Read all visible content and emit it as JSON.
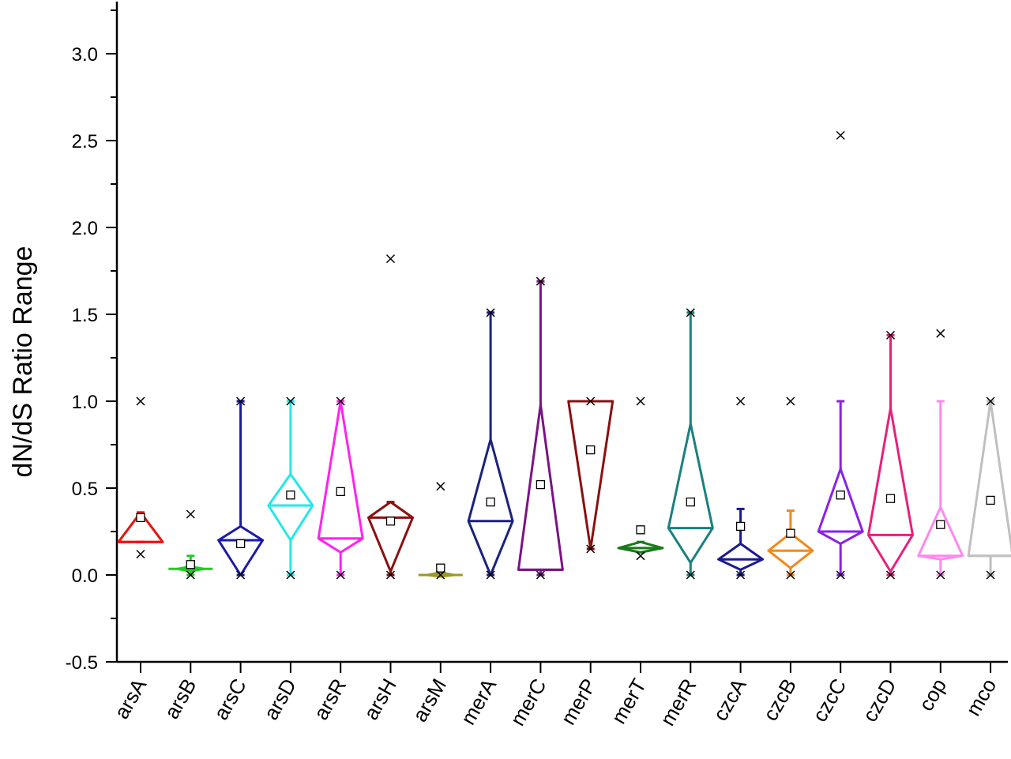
{
  "chart_data": {
    "type": "diamond-box",
    "ylabel": "dN/dS Ratio Range",
    "xlabel": "",
    "ylim": [
      -0.5,
      3.3
    ],
    "yticks": [
      -0.5,
      0.0,
      0.5,
      1.0,
      1.5,
      2.0,
      2.5,
      3.0
    ],
    "ytick_labels": [
      "-0.5",
      "0.0",
      "0.5",
      "1.0",
      "1.5",
      "2.0",
      "2.5",
      "3.0"
    ],
    "grid": false,
    "legend": "none",
    "categories": [
      "arsA",
      "arsB",
      "arsC",
      "arsD",
      "arsR",
      "arsH",
      "arsM",
      "merA",
      "merC",
      "merP",
      "merT",
      "merR",
      "czcA",
      "czcB",
      "czcC",
      "czcD",
      "cop",
      "mco"
    ],
    "series": [
      {
        "category": "arsA",
        "color": "#e8130f",
        "whisker_low": 0.19,
        "whisker_high": 0.36,
        "q1": 0.19,
        "q3": 0.36,
        "median": 0.19,
        "mean": 0.33,
        "min": 0.12,
        "max": 1.0
      },
      {
        "category": "arsB",
        "color": "#22cc22",
        "whisker_low": 0.0,
        "whisker_high": 0.11,
        "q1": 0.03,
        "q3": 0.04,
        "median": 0.035,
        "mean": 0.06,
        "min": 0.0,
        "max": 0.35
      },
      {
        "category": "arsC",
        "color": "#1a1aa8",
        "whisker_low": 0.0,
        "whisker_high": 1.0,
        "q1": 0.0,
        "q3": 0.28,
        "median": 0.2,
        "mean": 0.18,
        "min": 0.0,
        "max": 1.0
      },
      {
        "category": "arsD",
        "color": "#22e8e8",
        "whisker_low": 0.0,
        "whisker_high": 1.0,
        "q1": 0.2,
        "q3": 0.58,
        "median": 0.4,
        "mean": 0.46,
        "min": 0.0,
        "max": 1.0
      },
      {
        "category": "arsR",
        "color": "#ff22ee",
        "whisker_low": 0.0,
        "whisker_high": 1.0,
        "q1": 0.13,
        "q3": 1.0,
        "median": 0.21,
        "mean": 0.48,
        "min": 0.0,
        "max": 1.0
      },
      {
        "category": "arsH",
        "color": "#8b1010",
        "whisker_low": 0.0,
        "whisker_high": 0.42,
        "q1": 0.02,
        "q3": 0.42,
        "median": 0.33,
        "mean": 0.31,
        "min": 0.0,
        "max": 1.82
      },
      {
        "category": "arsM",
        "color": "#9a9a20",
        "whisker_low": 0.0,
        "whisker_high": 0.01,
        "q1": 0.0,
        "q3": 0.005,
        "median": 0.0,
        "mean": 0.04,
        "min": 0.0,
        "max": 0.51
      },
      {
        "category": "merA",
        "color": "#1a237e",
        "whisker_low": 0.0,
        "whisker_high": 1.51,
        "q1": 0.0,
        "q3": 0.78,
        "median": 0.31,
        "mean": 0.42,
        "min": 0.0,
        "max": 1.51
      },
      {
        "category": "merC",
        "color": "#7b1385",
        "whisker_low": 0.0,
        "whisker_high": 1.69,
        "q1": 0.03,
        "q3": 0.98,
        "median": 0.03,
        "mean": 0.52,
        "min": 0.0,
        "max": 1.69
      },
      {
        "category": "merP",
        "color": "#8b1010",
        "whisker_low": 0.15,
        "whisker_high": 1.0,
        "q1": 0.15,
        "q3": 1.0,
        "median": 1.0,
        "mean": 0.72,
        "min": 0.15,
        "max": 1.0
      },
      {
        "category": "merT",
        "color": "#1a7a1a",
        "whisker_low": 0.13,
        "whisker_high": 0.19,
        "q1": 0.13,
        "q3": 0.19,
        "median": 0.155,
        "mean": 0.26,
        "min": 0.11,
        "max": 1.0
      },
      {
        "category": "merR",
        "color": "#1a8080",
        "whisker_low": 0.0,
        "whisker_high": 1.51,
        "q1": 0.07,
        "q3": 0.87,
        "median": 0.27,
        "mean": 0.42,
        "min": 0.0,
        "max": 1.51
      },
      {
        "category": "czcA",
        "color": "#1a1a90",
        "whisker_low": 0.0,
        "whisker_high": 0.38,
        "q1": 0.03,
        "q3": 0.18,
        "median": 0.09,
        "mean": 0.28,
        "min": 0.0,
        "max": 1.0
      },
      {
        "category": "czcB",
        "color": "#f08a1a",
        "whisker_low": 0.0,
        "whisker_high": 0.37,
        "q1": 0.04,
        "q3": 0.24,
        "median": 0.14,
        "mean": 0.24,
        "min": 0.0,
        "max": 1.0
      },
      {
        "category": "czcC",
        "color": "#8a22e8",
        "whisker_low": 0.0,
        "whisker_high": 1.0,
        "q1": 0.18,
        "q3": 0.61,
        "median": 0.25,
        "mean": 0.46,
        "min": 0.0,
        "max": 2.53
      },
      {
        "category": "czcD",
        "color": "#e8207a",
        "whisker_low": 0.0,
        "whisker_high": 1.38,
        "q1": 0.02,
        "q3": 0.96,
        "median": 0.23,
        "mean": 0.44,
        "min": 0.0,
        "max": 1.38
      },
      {
        "category": "cop",
        "color": "#ff88ee",
        "whisker_low": 0.0,
        "whisker_high": 1.0,
        "q1": 0.09,
        "q3": 0.39,
        "median": 0.11,
        "mean": 0.29,
        "min": 0.0,
        "max": 1.39
      },
      {
        "category": "mco",
        "color": "#c0c0c0",
        "whisker_low": 0.0,
        "whisker_high": 1.0,
        "q1": 0.11,
        "q3": 1.0,
        "median": 0.11,
        "mean": 0.43,
        "min": 0.0,
        "max": 1.0
      }
    ]
  }
}
